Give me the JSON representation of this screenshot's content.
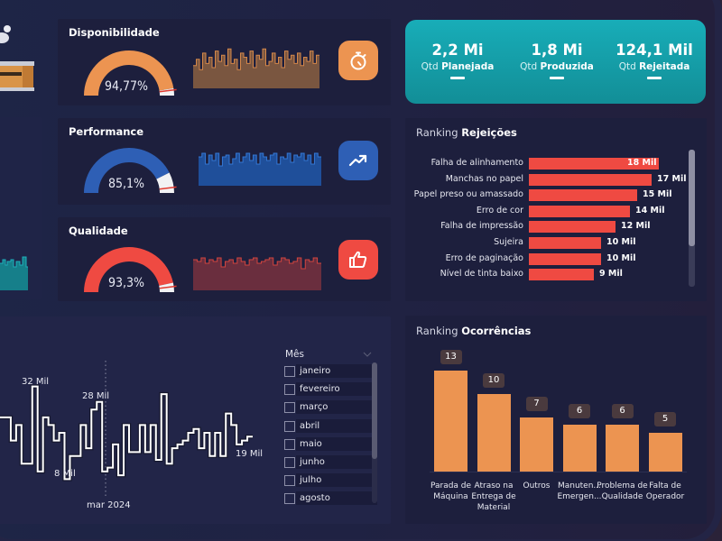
{
  "colors": {
    "orange": "#ec9451",
    "blue": "#2e5fb5",
    "red": "#ef4a42",
    "teal": "#14a3ad"
  },
  "metrics": [
    {
      "key": "disponibilidade",
      "title": "Disponibilidade",
      "value_label": "94,77%",
      "value": 0.9477,
      "color": "#ec9451",
      "icon": "stopwatch-icon"
    },
    {
      "key": "performance",
      "title": "Performance",
      "value_label": "85,1%",
      "value": 0.851,
      "color": "#2e5fb5",
      "icon": "trending-up-icon"
    },
    {
      "key": "qualidade",
      "title": "Qualidade",
      "value_label": "93,3%",
      "value": 0.933,
      "color": "#ef4a42",
      "icon": "thumbs-up-icon"
    }
  ],
  "kpis": [
    {
      "value": "2,2 Mi",
      "prefix": "Qtd",
      "label": "Planejada"
    },
    {
      "value": "1,8 Mi",
      "prefix": "Qtd",
      "label": "Produzida"
    },
    {
      "value": "124,1 Mil",
      "prefix": "Qtd",
      "label": "Rejeitada"
    }
  ],
  "rejeicoes": {
    "title_prefix": "Ranking",
    "title_bold": "Rejeições"
  },
  "ocorrencias": {
    "title_prefix": "Ranking",
    "title_bold": "Ocorrências"
  },
  "slicer": {
    "title": "Mês",
    "items": [
      "janeiro",
      "fevereiro",
      "março",
      "abril",
      "maio",
      "junho",
      "julho",
      "agosto"
    ]
  },
  "trend": {
    "labels": {
      "max": "32 Mil",
      "peak2": "28 Mil",
      "min": "8 Mil",
      "last": "19 Mil"
    },
    "axis_label": "mar 2024"
  },
  "chart_data": [
    {
      "type": "bar",
      "orientation": "horizontal",
      "title": "Ranking Rejeições",
      "categories": [
        "Falha de alinhamento",
        "Manchas no papel",
        "Papel preso ou amassado",
        "Erro de cor",
        "Falha de impressão",
        "Sujeira",
        "Erro de paginação",
        "Nível de tinta baixo"
      ],
      "values": [
        18,
        17,
        15,
        14,
        12,
        10,
        10,
        9
      ],
      "value_labels": [
        "18 Mil",
        "17 Mil",
        "15 Mil",
        "14 Mil",
        "12 Mil",
        "10 Mil",
        "10 Mil",
        "9 Mil"
      ],
      "unit": "Mil"
    },
    {
      "type": "bar",
      "title": "Ranking Ocorrências",
      "categories": [
        "Parada de Máquina",
        "Atraso na Entrega de Material",
        "Outros",
        "Manuten... Emergen...",
        "Problema de Qualidade",
        "Falta de Operador"
      ],
      "values": [
        13,
        10,
        7,
        6,
        6,
        5
      ],
      "ylim": [
        0,
        13
      ]
    },
    {
      "type": "line",
      "title": "",
      "step": true,
      "xlabel": "mar 2024",
      "values": [
        24,
        24,
        18,
        22,
        12,
        12,
        32,
        10,
        24,
        22,
        18,
        20,
        8,
        14,
        14,
        22,
        16,
        26,
        28,
        10,
        11,
        17,
        9,
        22,
        15,
        15,
        22,
        15,
        22,
        13,
        30,
        12,
        16,
        17,
        18,
        20,
        21,
        16,
        20,
        14,
        20,
        14,
        25,
        22,
        17,
        18,
        19
      ],
      "ylim": [
        6,
        34
      ],
      "unit": "Mil",
      "annotations": [
        "32 Mil",
        "28 Mil",
        "8 Mil",
        "19 Mil"
      ]
    },
    {
      "type": "area",
      "title": "Disponibilidade sparkline",
      "values": [
        0.55,
        0.7,
        0.45,
        0.85,
        0.6,
        0.75,
        0.5,
        0.9,
        0.65,
        0.8,
        0.55,
        0.95,
        0.6,
        0.7,
        0.45,
        0.85,
        0.75,
        0.6,
        0.9,
        0.5,
        0.8,
        0.7,
        0.95,
        0.55,
        0.65,
        0.85,
        0.6,
        0.75,
        0.5,
        0.9,
        0.7,
        0.8,
        0.6,
        0.85,
        0.55,
        0.75,
        0.65,
        0.9,
        0.6,
        0.8
      ]
    },
    {
      "type": "area",
      "title": "Performance sparkline",
      "values": [
        0.8,
        0.9,
        0.6,
        0.85,
        0.7,
        0.9,
        0.55,
        0.8,
        0.85,
        0.6,
        0.75,
        0.9,
        0.65,
        0.8,
        0.9,
        0.7,
        0.85,
        0.6,
        0.9,
        0.8,
        0.7,
        0.85,
        0.9,
        0.6,
        0.8,
        0.75,
        0.9,
        0.65,
        0.85,
        0.8,
        0.9,
        0.7,
        0.85,
        0.6,
        0.9,
        0.8
      ]
    },
    {
      "type": "area",
      "title": "Qualidade sparkline",
      "values": [
        0.85,
        0.8,
        0.9,
        0.75,
        0.85,
        0.8,
        0.9,
        0.65,
        0.8,
        0.85,
        0.75,
        0.9,
        0.8,
        0.7,
        0.85,
        0.9,
        0.75,
        0.8,
        0.85,
        0.9,
        0.7,
        0.8,
        0.9,
        0.85,
        0.75,
        0.8,
        0.9,
        0.6,
        0.85,
        0.8,
        0.9,
        0.75
      ]
    }
  ]
}
